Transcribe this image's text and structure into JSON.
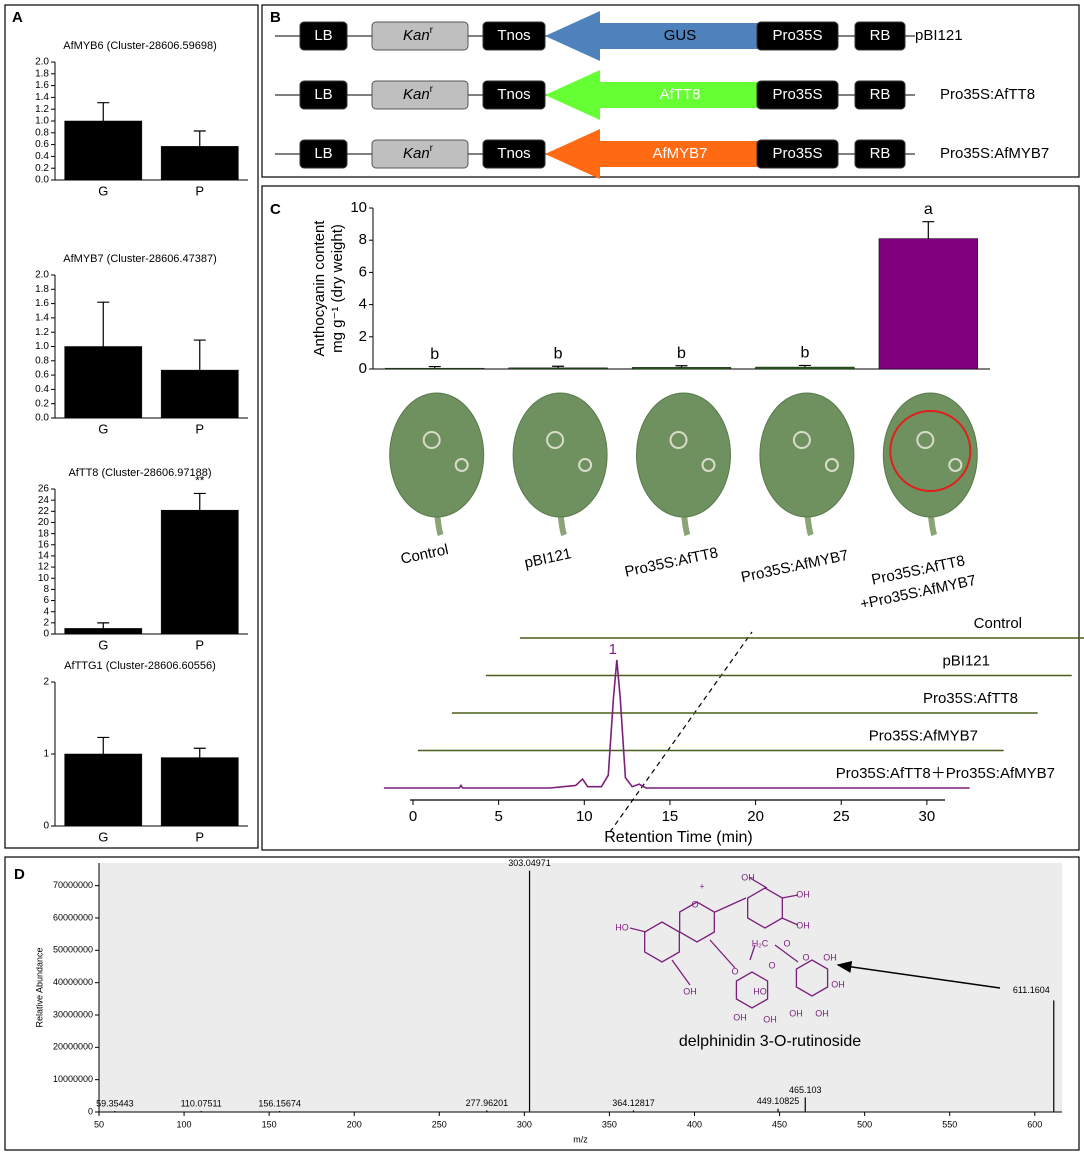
{
  "panel_labels": [
    "A",
    "B",
    "C",
    "D"
  ],
  "chart_data": [
    {
      "type": "bar",
      "title": "AfMYB6 (Cluster-28606.59698)",
      "categories": [
        "G",
        "P"
      ],
      "values": [
        1.0,
        0.57
      ],
      "errors": [
        0.31,
        0.26
      ],
      "color": "#000000",
      "ylim": [
        0,
        2
      ],
      "yticks": [
        {
          "value": 0,
          "label": "0.0"
        },
        0.2,
        0.4,
        0.6,
        0.8,
        {
          "value": 1,
          "label": "1.0"
        },
        1.2,
        1.4,
        1.6,
        1.8,
        {
          "value": 2,
          "label": "2.0"
        }
      ]
    },
    {
      "type": "bar",
      "title": "AfMYB7 (Cluster-28606.47387)",
      "categories": [
        "G",
        "P"
      ],
      "values": [
        1.0,
        0.67
      ],
      "errors": [
        0.62,
        0.42
      ],
      "color": "#000000",
      "ylim": [
        0,
        2
      ],
      "yticks": [
        {
          "value": 0,
          "label": "0.0"
        },
        0.2,
        0.4,
        0.6,
        0.8,
        {
          "value": 1,
          "label": "1.0"
        },
        1.2,
        1.4,
        1.6,
        1.8,
        {
          "value": 2,
          "label": "2.0"
        }
      ]
    },
    {
      "type": "bar",
      "title": "AfTT8 (Cluster-28606.97188)",
      "categories": [
        "G",
        "P"
      ],
      "values": [
        1.0,
        22.2
      ],
      "errors": [
        1.0,
        3.0
      ],
      "group_labels": [
        null,
        "**"
      ],
      "color": "#000000",
      "ylim": [
        0,
        26
      ],
      "yticks": [
        0,
        2,
        4,
        6,
        8,
        10,
        12,
        14,
        16,
        18,
        20,
        22,
        24,
        26
      ]
    },
    {
      "type": "bar",
      "title": "AfTTG1 (Cluster-28606.60556)",
      "categories": [
        "G",
        "P"
      ],
      "values": [
        1.0,
        0.95
      ],
      "errors": [
        0.23,
        0.13
      ],
      "color": "#000000",
      "ylim": [
        0,
        2
      ],
      "yticks": [
        0,
        1,
        2
      ]
    },
    {
      "type": "bar",
      "ylabel": [
        "Anthocyanin content",
        "mg g⁻¹ (dry weight)"
      ],
      "categories": [
        "Control",
        "pBI121",
        "Pro35S:AfTT8",
        "Pro35S:AfMYB7",
        [
          "Pro35S:AfTT8",
          "+Pro35S:AfMYB7"
        ]
      ],
      "values": [
        0.05,
        0.07,
        0.1,
        0.12,
        8.1
      ],
      "errors": [
        0.1,
        0.1,
        0.1,
        0.1,
        1.05
      ],
      "group_labels": [
        "b",
        "b",
        "b",
        "b",
        "a"
      ],
      "colors": [
        "#2e6b1f",
        "#2e6b1f",
        "#2e6b1f",
        "#2e6b1f",
        "#800080"
      ],
      "ylim": [
        0,
        10
      ],
      "yticks": [
        0,
        2,
        4,
        6,
        8,
        10
      ]
    },
    {
      "type": "line",
      "xlabel": "Retention Time (min)",
      "xlim": [
        0,
        31
      ],
      "xticks": [
        0,
        5,
        10,
        15,
        20,
        25,
        30
      ],
      "ylim": [
        0,
        100
      ],
      "peak_label": "1",
      "series": [
        {
          "name": "Control",
          "color": "#4b5e1b",
          "x": [
            -1.7,
            32.5
          ],
          "values": [
            0,
            0
          ]
        },
        {
          "name": "pBI121",
          "color": "#4b5e1b",
          "x": [
            -1.7,
            32.5
          ],
          "values": [
            0,
            0
          ]
        },
        {
          "name": "Pro35S:AfTT8",
          "color": "#4b5e1b",
          "x": [
            -1.7,
            32.5
          ],
          "values": [
            0,
            0
          ]
        },
        {
          "name": "Pro35S:AfMYB7",
          "color": "#4b5e1b",
          "x": [
            -1.7,
            32.5
          ],
          "values": [
            0,
            0
          ]
        },
        {
          "name": "Pro35S:AfTT8＋Pro35S:AfMYB7",
          "color": "#7b1f7b",
          "x": [
            -1.7,
            2.7,
            2.8,
            2.9,
            8,
            9.5,
            9.9,
            10.2,
            11,
            11.4,
            11.7,
            11.9,
            12.1,
            12.4,
            12.8,
            13.2,
            13.6,
            32.5
          ],
          "values": [
            0,
            0,
            2,
            0,
            0,
            2,
            7,
            1,
            1,
            10,
            70,
            100,
            70,
            8,
            1,
            3,
            0,
            0
          ]
        }
      ]
    },
    {
      "type": "spectrum",
      "xlabel": "m/z",
      "ylabel": "Relative Abundance",
      "annotation": "delphinidin 3-O-rutinoside",
      "color": "#000000",
      "xlim": [
        50,
        616
      ],
      "xticks": [
        50,
        100,
        150,
        200,
        250,
        300,
        350,
        400,
        450,
        500,
        550,
        600
      ],
      "ylim": [
        0,
        77000000
      ],
      "yticks": [
        0,
        10000000,
        20000000,
        30000000,
        40000000,
        50000000,
        60000000,
        70000000
      ],
      "x": [
        59.35443,
        110.07511,
        156.15674,
        277.96201,
        303.04971,
        364.12817,
        449.10825,
        465.103,
        611.1604
      ],
      "values": [
        300000,
        300000,
        300000,
        500000,
        74600000,
        500000,
        1000000,
        4500000,
        34500000
      ]
    }
  ],
  "constructs": {
    "lb": "LB",
    "marker": "Kan",
    "marker_sup": "r",
    "terminator": "Tnos",
    "promoter": "Pro35S",
    "rb": "RB",
    "rows": [
      {
        "gene": "GUS",
        "color": "#4f81bd",
        "text_color": "#000000",
        "name": "pBI121"
      },
      {
        "gene": "AfTT8",
        "color": "#66ff33",
        "text_color": "#ffffff",
        "name": "Pro35S:AfTT8"
      },
      {
        "gene": "AfMYB7",
        "color": "#ff6a13",
        "text_color": "#ffffff",
        "name": "Pro35S:AfMYB7"
      }
    ]
  },
  "structure_labels": [
    "OH",
    "OH",
    "OH",
    "HO",
    "O",
    "+",
    "O",
    "OH",
    "H₂C",
    "O",
    "O",
    "OH",
    "OH",
    "OH",
    "OH",
    "HO",
    "OH",
    "OH",
    "O"
  ]
}
